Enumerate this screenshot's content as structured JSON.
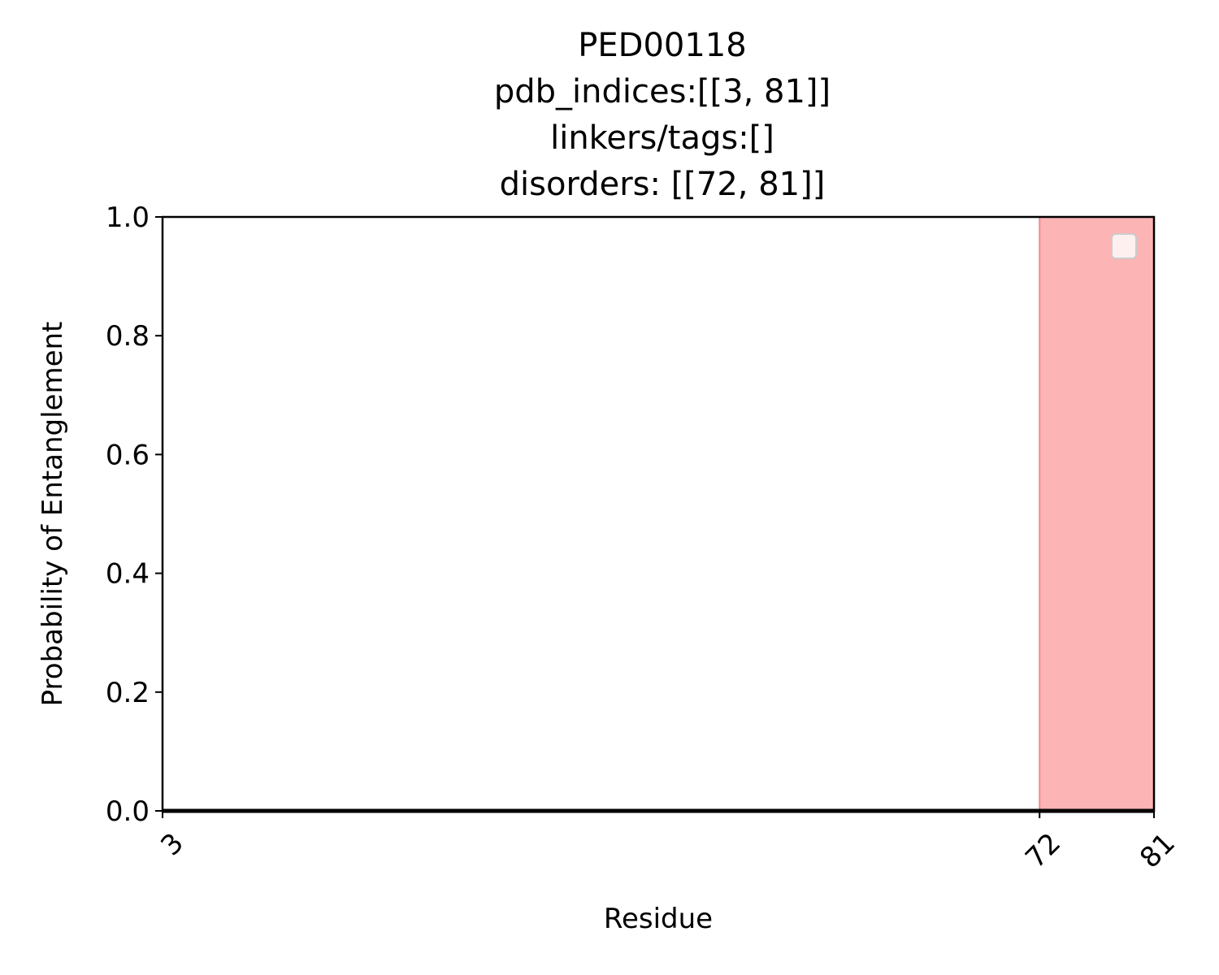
{
  "chart_data": {
    "type": "line",
    "title_lines": [
      "PED00118",
      "pdb_indices:[[3, 81]]",
      "linkers/tags:[]",
      "disorders: [[72, 81]]"
    ],
    "xlabel": "Residue",
    "ylabel": "Probability of Entanglement",
    "xlim": [
      3,
      81
    ],
    "ylim": [
      0.0,
      1.0
    ],
    "x_ticks": [
      3,
      72,
      81
    ],
    "y_ticks": [
      "0.0",
      "0.2",
      "0.4",
      "0.6",
      "0.8",
      "1.0"
    ],
    "series": [
      {
        "x": [
          3,
          81
        ],
        "y": [
          0.0,
          0.0
        ]
      }
    ],
    "shaded_regions": [
      {
        "x_start": 72,
        "x_end": 81
      }
    ],
    "legend": {
      "placement": "upper-right",
      "entries": []
    },
    "grid": false,
    "colors": {
      "line": "#000000",
      "region_fill": "#fdb4b4",
      "region_edge": "#f08a8a"
    }
  }
}
